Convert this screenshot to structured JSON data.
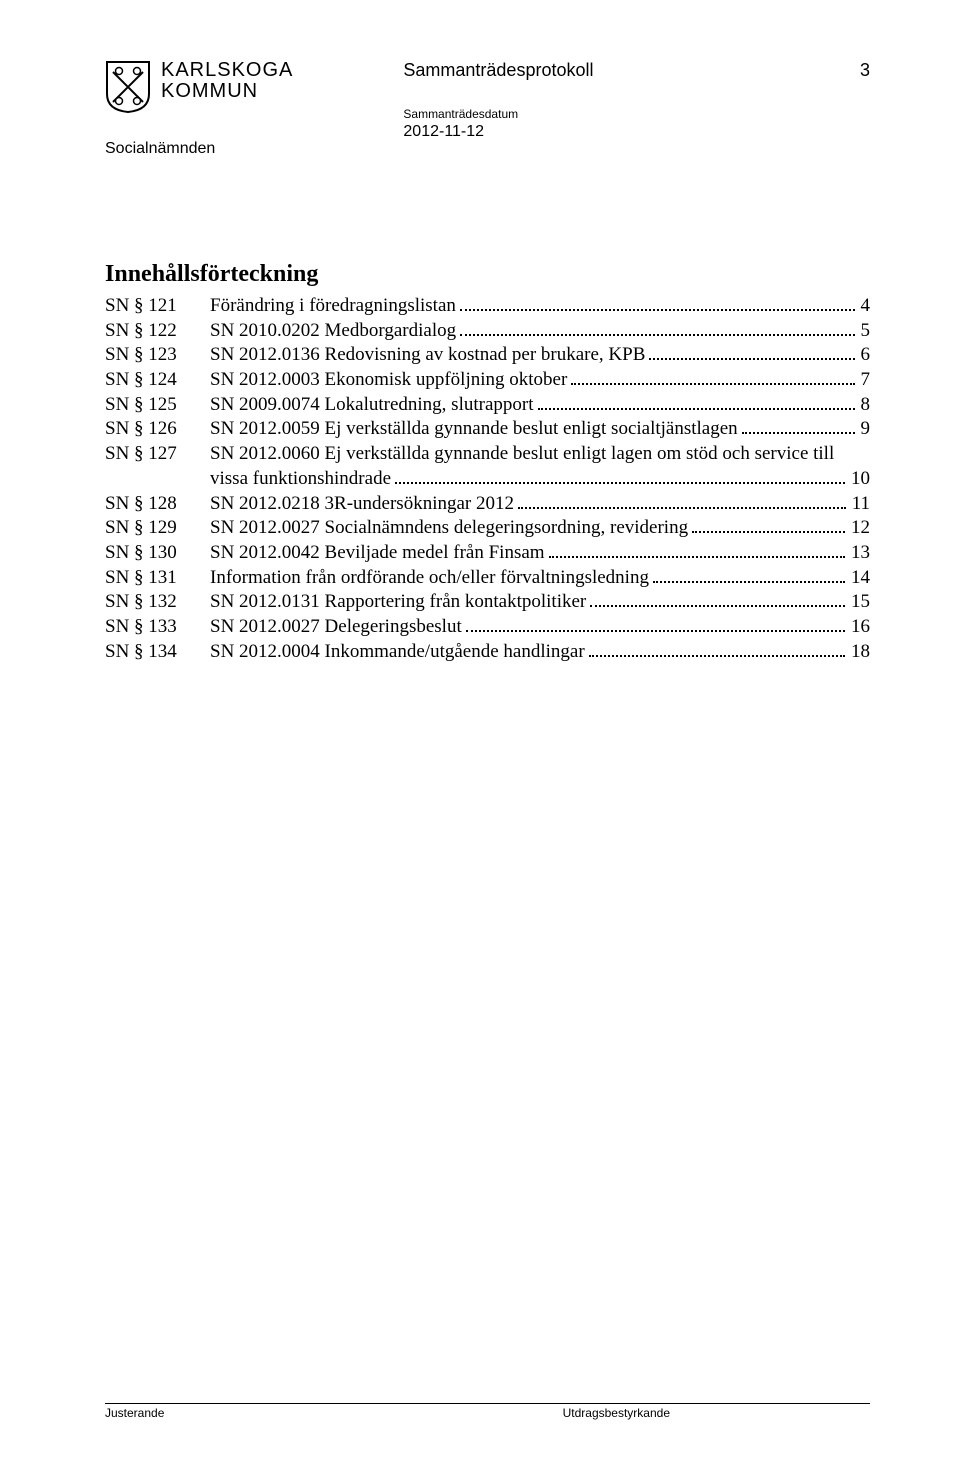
{
  "header": {
    "org_line1": "KARLSKOGA",
    "org_line2": "KOMMUN",
    "doc_title": "Sammanträdesprotokoll",
    "meta_label": "Sammanträdesdatum",
    "meta_date": "2012-11-12",
    "page_number": "3",
    "committee": "Socialnämnden",
    "crest_stroke": "#000000",
    "crest_fill": "#ffffff"
  },
  "toc": {
    "heading": "Innehållsförteckning",
    "entries": [
      {
        "sn": "SN § 121",
        "title": "Förändring i föredragningslistan",
        "page": "4",
        "wrap": false
      },
      {
        "sn": "SN § 122",
        "title": "SN 2010.0202  Medborgardialog",
        "page": "5",
        "wrap": false
      },
      {
        "sn": "SN § 123",
        "title": "SN 2012.0136  Redovisning av kostnad per brukare, KPB",
        "page": "6",
        "wrap": false
      },
      {
        "sn": "SN § 124",
        "title": "SN 2012.0003  Ekonomisk uppföljning oktober",
        "page": "7",
        "wrap": false
      },
      {
        "sn": "SN § 125",
        "title": "SN 2009.0074  Lokalutredning, slutrapport",
        "page": "8",
        "wrap": false
      },
      {
        "sn": "SN § 126",
        "title": "SN 2012.0059  Ej verkställda gynnande beslut enligt socialtjänstlagen",
        "page": "9",
        "wrap": false
      },
      {
        "sn": "SN § 127",
        "title_l1": "SN 2012.0060  Ej verkställda gynnande beslut enligt lagen om stöd och service till",
        "title_l2": "vissa funktionshindrade",
        "page": "10",
        "wrap": true
      },
      {
        "sn": "SN § 128",
        "title": "SN 2012.0218  3R-undersökningar 2012",
        "page": "11",
        "wrap": false
      },
      {
        "sn": "SN § 129",
        "title": "SN 2012.0027  Socialnämndens delegeringsordning, revidering",
        "page": "12",
        "wrap": false
      },
      {
        "sn": "SN § 130",
        "title": "SN 2012.0042  Beviljade medel från Finsam",
        "page": "13",
        "wrap": false
      },
      {
        "sn": "SN § 131",
        "title": "Information från ordförande och/eller förvaltningsledning",
        "page": "14",
        "wrap": false
      },
      {
        "sn": "SN § 132",
        "title": "SN 2012.0131  Rapportering från kontaktpolitiker",
        "page": "15",
        "wrap": false
      },
      {
        "sn": "SN § 133",
        "title": "SN 2012.0027  Delegeringsbeslut",
        "page": "16",
        "wrap": false
      },
      {
        "sn": "SN § 134",
        "title": " SN 2012.0004  Inkommande/utgående handlingar",
        "page": "18",
        "wrap": false
      }
    ]
  },
  "footer": {
    "left": "Justerande",
    "right": "Utdragsbestyrkande"
  }
}
